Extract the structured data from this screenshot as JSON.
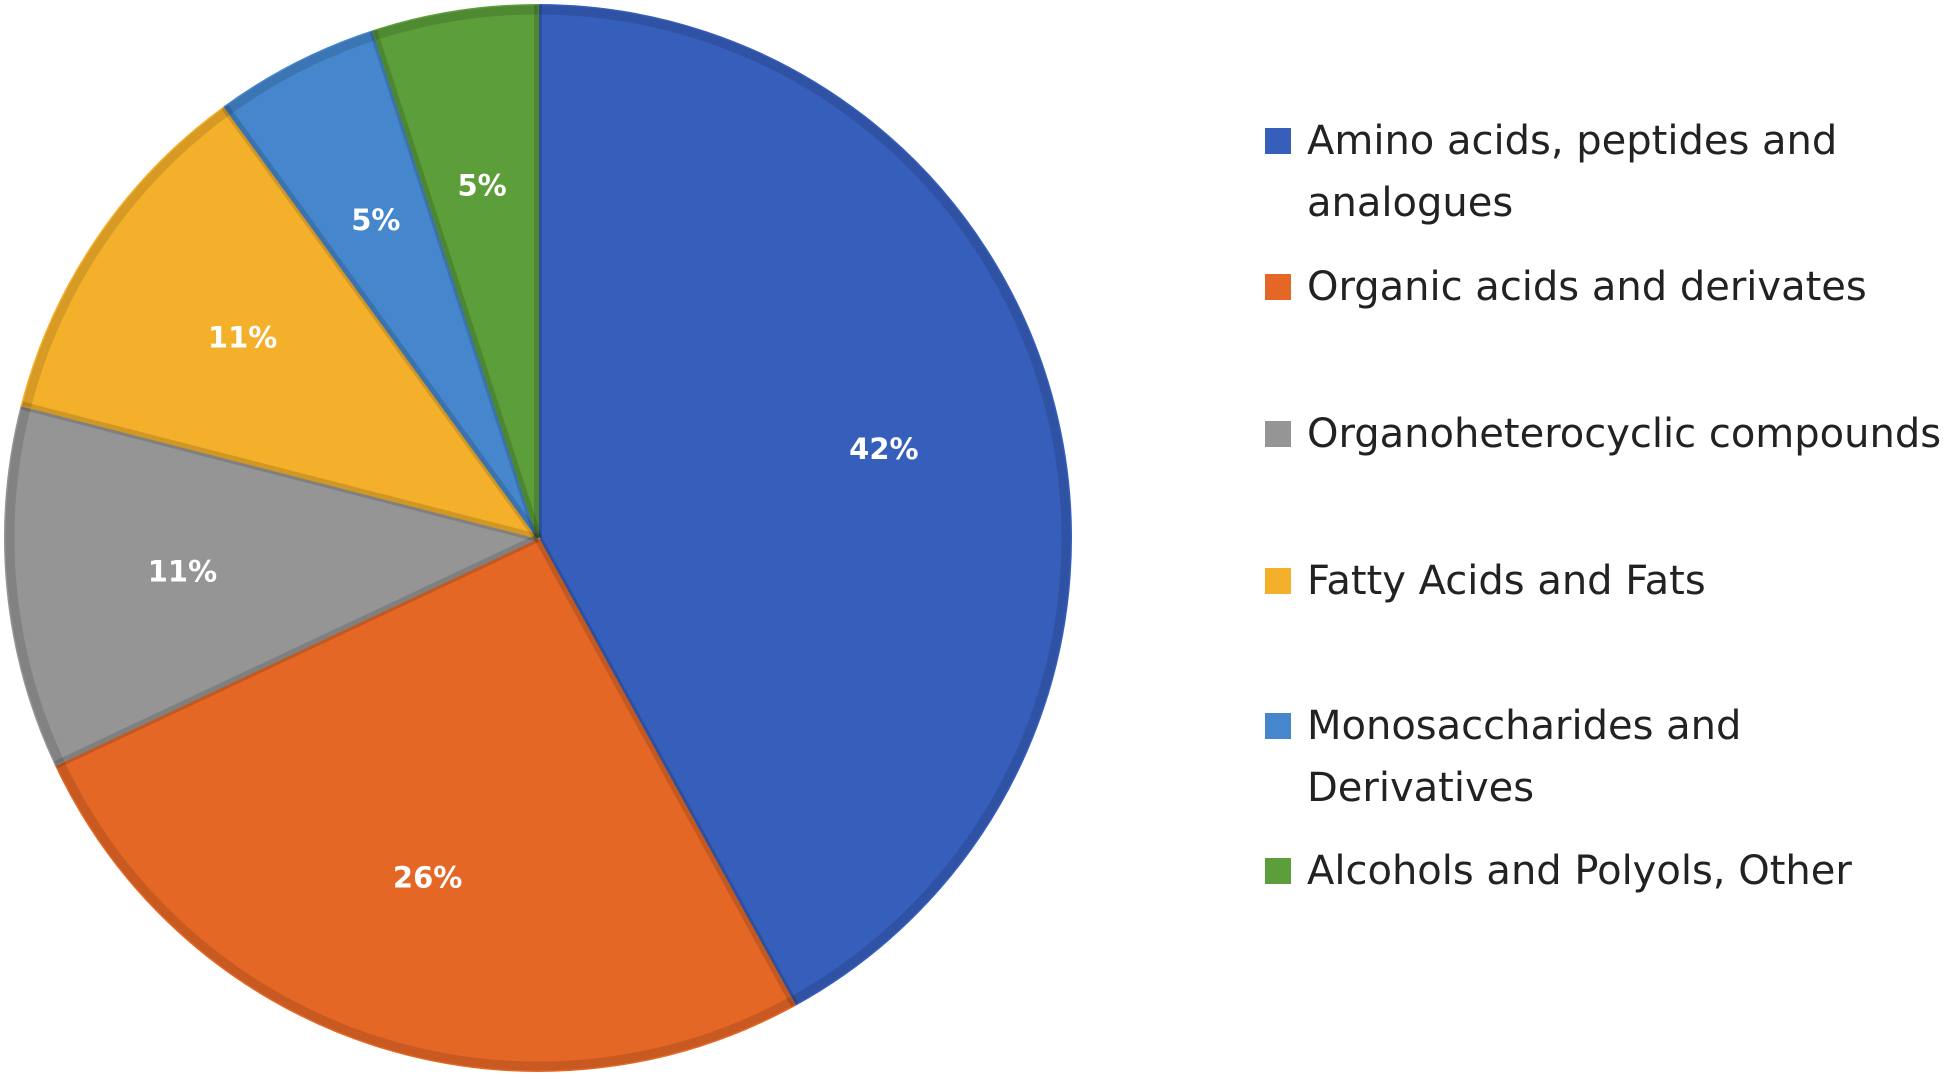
{
  "chart_data": {
    "type": "pie",
    "title": "",
    "slices": [
      {
        "name": "Amino acids, peptides and analogues",
        "value": 42,
        "label": "42%",
        "color": "#365ebb"
      },
      {
        "name": "Organic acids and derivates",
        "value": 26,
        "label": "26%",
        "color": "#e46726"
      },
      {
        "name": "Organoheterocyclic compounds",
        "value": 11,
        "label": "11%",
        "color": "#959595"
      },
      {
        "name": "Fatty Acids and Fats",
        "value": 11,
        "label": "11%",
        "color": "#f4b02b"
      },
      {
        "name": "Monosaccharides and Derivatives",
        "value": 5,
        "label": "5%",
        "color": "#4586cc"
      },
      {
        "name": "Alcohols and Polyols, Other",
        "value": 5,
        "label": "5%",
        "color": "#5b9e3a"
      }
    ],
    "start_angle_deg": 0,
    "direction": "clockwise",
    "legend_position": "right"
  }
}
